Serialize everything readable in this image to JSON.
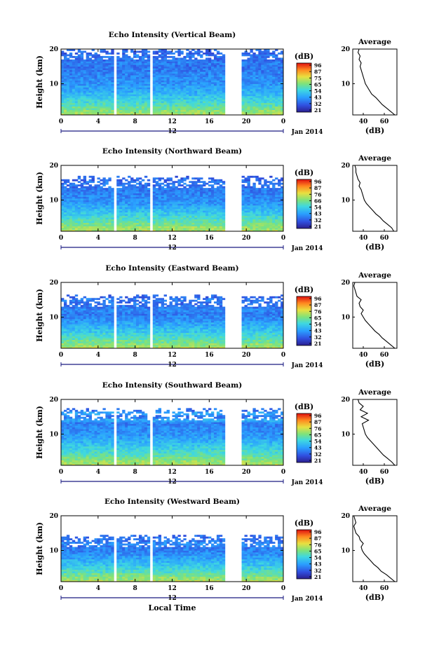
{
  "chart_data": [
    {
      "type": "heatmap",
      "title": "Echo Intensity (Vertical Beam)",
      "ylabel": "Height (km)",
      "xlabel": "",
      "x_ticks": [
        "0",
        "4",
        "8",
        "12",
        "16",
        "20",
        "0"
      ],
      "secondary_x_tick": "12",
      "date_label": "Jan 2014",
      "y_ticks": [
        "20",
        "10"
      ],
      "xlim": [
        0,
        24
      ],
      "ylim": [
        1,
        20
      ],
      "data_gaps_hours": [
        [
          5.6,
          6.1
        ],
        [
          9.6,
          10.0
        ],
        [
          17.6,
          19.5
        ]
      ],
      "echo_top_km": 20,
      "colorbar": {
        "unit": "(dB)",
        "ticks": [
          "96",
          "87",
          "75",
          "65",
          "54",
          "43",
          "32",
          "21"
        ],
        "range": [
          21,
          96
        ]
      },
      "profile": {
        "title": "Average",
        "xlabel": "(dB)",
        "x_ticks": [
          "40",
          "60"
        ],
        "xlim": [
          30,
          72
        ],
        "height_km": [
          1,
          2,
          3,
          4,
          5,
          6,
          7,
          8,
          9,
          10,
          11,
          12,
          13,
          14,
          15,
          16,
          17,
          18,
          19,
          20
        ],
        "avg_db": [
          70,
          66,
          62,
          58,
          55,
          52,
          48,
          46,
          44,
          42,
          41,
          40,
          39,
          38,
          37,
          38,
          36,
          37,
          35,
          36
        ]
      }
    },
    {
      "type": "heatmap",
      "title": "Echo Intensity (Northward Beam)",
      "ylabel": "Height (km)",
      "xlabel": "",
      "x_ticks": [
        "0",
        "4",
        "8",
        "12",
        "16",
        "20",
        "0"
      ],
      "secondary_x_tick": "12",
      "date_label": "Jan 2014",
      "y_ticks": [
        "20",
        "10"
      ],
      "xlim": [
        0,
        24
      ],
      "ylim": [
        1,
        20
      ],
      "data_gaps_hours": [
        [
          5.6,
          6.1
        ],
        [
          9.6,
          10.0
        ],
        [
          17.6,
          19.5
        ]
      ],
      "echo_top_km": 16.5,
      "colorbar": {
        "unit": "(dB)",
        "ticks": [
          "96",
          "87",
          "76",
          "66",
          "54",
          "43",
          "32",
          "21"
        ],
        "range": [
          21,
          96
        ]
      },
      "profile": {
        "title": "Average",
        "xlabel": "(dB)",
        "x_ticks": [
          "40",
          "60"
        ],
        "xlim": [
          30,
          72
        ],
        "height_km": [
          1,
          2,
          3,
          4,
          5,
          6,
          7,
          8,
          9,
          10,
          11,
          12,
          13,
          14,
          15,
          16,
          17,
          18,
          19,
          20
        ],
        "avg_db": [
          69,
          67,
          63,
          59,
          56,
          52,
          49,
          46,
          43,
          41,
          40,
          39,
          38,
          36,
          37,
          35,
          34,
          33,
          33,
          32
        ]
      }
    },
    {
      "type": "heatmap",
      "title": "Echo Intensity (Eastward Beam)",
      "ylabel": "Height (km)",
      "xlabel": "",
      "x_ticks": [
        "0",
        "4",
        "8",
        "12",
        "16",
        "20",
        "0"
      ],
      "secondary_x_tick": "12",
      "date_label": "Jan 2014",
      "y_ticks": [
        "20",
        "10"
      ],
      "xlim": [
        0,
        24
      ],
      "ylim": [
        1,
        20
      ],
      "data_gaps_hours": [
        [
          5.6,
          6.1
        ],
        [
          9.6,
          10.0
        ],
        [
          17.6,
          19.5
        ]
      ],
      "echo_top_km": 16,
      "colorbar": {
        "unit": "(dB)",
        "ticks": [
          "96",
          "87",
          "76",
          "65",
          "54",
          "43",
          "32",
          "21"
        ],
        "range": [
          21,
          96
        ]
      },
      "profile": {
        "title": "Average",
        "xlabel": "(dB)",
        "x_ticks": [
          "40",
          "60"
        ],
        "xlim": [
          30,
          72
        ],
        "height_km": [
          1,
          2,
          3,
          4,
          5,
          6,
          7,
          8,
          9,
          10,
          11,
          12,
          13,
          14,
          15,
          16,
          17,
          18,
          19,
          20
        ],
        "avg_db": [
          70,
          66,
          62,
          58,
          55,
          51,
          48,
          45,
          42,
          40,
          38,
          40,
          37,
          36,
          38,
          34,
          33,
          32,
          31,
          32
        ]
      }
    },
    {
      "type": "heatmap",
      "title": "Echo Intensity (Southward Beam)",
      "ylabel": "Height (km)",
      "xlabel": "",
      "x_ticks": [
        "0",
        "4",
        "8",
        "12",
        "16",
        "20",
        "0"
      ],
      "secondary_x_tick": "12",
      "date_label": "Jan 2014",
      "y_ticks": [
        "20",
        "10"
      ],
      "xlim": [
        0,
        24
      ],
      "ylim": [
        1,
        20
      ],
      "data_gaps_hours": [
        [
          5.6,
          6.1
        ],
        [
          9.6,
          10.0
        ],
        [
          17.6,
          19.5
        ]
      ],
      "echo_top_km": 17,
      "colorbar": {
        "unit": "(dB)",
        "ticks": [
          "96",
          "87",
          "76",
          "65",
          "54",
          "43",
          "32",
          "21"
        ],
        "range": [
          21,
          96
        ]
      },
      "profile": {
        "title": "Average",
        "xlabel": "(dB)",
        "x_ticks": [
          "40",
          "60"
        ],
        "xlim": [
          30,
          72
        ],
        "height_km": [
          1,
          2,
          3,
          4,
          5,
          6,
          7,
          8,
          9,
          10,
          11,
          12,
          13,
          14,
          15,
          16,
          17,
          18,
          19,
          20
        ],
        "avg_db": [
          70,
          67,
          63,
          59,
          56,
          53,
          50,
          47,
          44,
          42,
          41,
          40,
          39,
          45,
          38,
          44,
          37,
          40,
          36,
          35
        ]
      }
    },
    {
      "type": "heatmap",
      "title": "Echo Intensity (Westward Beam)",
      "ylabel": "Height (km)",
      "xlabel": "Local Time",
      "x_ticks": [
        "0",
        "4",
        "8",
        "12",
        "16",
        "20",
        "0"
      ],
      "secondary_x_tick": "12",
      "date_label": "Jan 2014",
      "y_ticks": [
        "20",
        "10"
      ],
      "xlim": [
        0,
        24
      ],
      "ylim": [
        1,
        20
      ],
      "data_gaps_hours": [
        [
          5.6,
          6.1
        ],
        [
          9.6,
          10.0
        ],
        [
          17.6,
          19.5
        ]
      ],
      "echo_top_km": 14,
      "colorbar": {
        "unit": "(dB)",
        "ticks": [
          "96",
          "87",
          "76",
          "65",
          "54",
          "43",
          "32",
          "21"
        ],
        "range": [
          21,
          96
        ]
      },
      "profile": {
        "title": "Average",
        "xlabel": "(dB)",
        "x_ticks": [
          "40",
          "60"
        ],
        "xlim": [
          30,
          72
        ],
        "height_km": [
          1,
          2,
          3,
          4,
          5,
          6,
          7,
          8,
          9,
          10,
          11,
          12,
          13,
          14,
          15,
          16,
          17,
          18,
          19,
          20
        ],
        "avg_db": [
          70,
          66,
          62,
          57,
          54,
          50,
          47,
          44,
          41,
          39,
          38,
          40,
          37,
          36,
          33,
          32,
          31,
          33,
          32,
          31
        ]
      }
    }
  ]
}
